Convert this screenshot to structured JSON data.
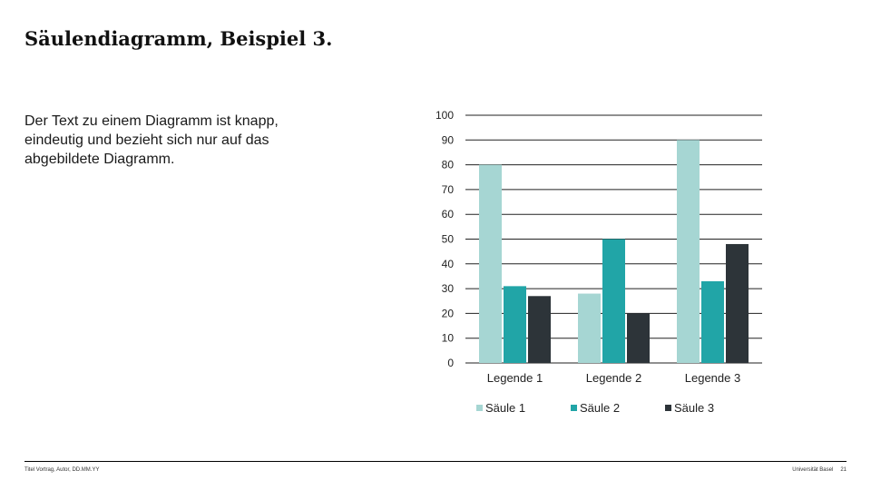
{
  "slide": {
    "title": "Säulendiagramm, Beispiel 3.",
    "body": "Der Text zu einem Diagramm ist knapp, eindeutig und bezieht sich nur auf das abgebildete Diagramm."
  },
  "footer": {
    "left": "Titel Vortrag, Autor, DD.MM.YY",
    "right": "Universität Basel",
    "page": "21"
  },
  "chart_data": {
    "type": "bar",
    "title": "",
    "xlabel": "",
    "ylabel": "",
    "categories": [
      "Legende 1",
      "Legende 2",
      "Legende 3"
    ],
    "series": [
      {
        "name": "Säule 1",
        "values": [
          80,
          28,
          90
        ],
        "color": "#a6d6d3"
      },
      {
        "name": "Säule 2",
        "values": [
          31,
          50,
          33
        ],
        "color": "#21a5a7"
      },
      {
        "name": "Säule 3",
        "values": [
          27,
          20,
          48
        ],
        "color": "#2d3439"
      }
    ],
    "ylim": [
      0,
      100
    ],
    "yticks": [
      0,
      10,
      20,
      30,
      40,
      50,
      60,
      70,
      80,
      90,
      100
    ],
    "grid": true,
    "legend_position": "bottom"
  }
}
